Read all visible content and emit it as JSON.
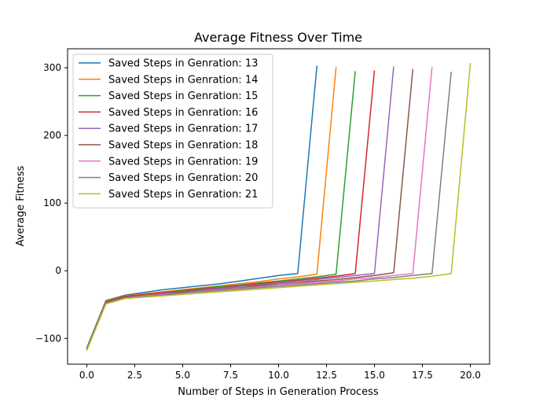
{
  "chart_data": {
    "type": "line",
    "title": "Average Fitness Over Time",
    "xlabel": "Number of Steps in Generation Process",
    "ylabel": "Average Fitness",
    "xlim": [
      -1.0,
      21.0
    ],
    "ylim": [
      -138,
      328
    ],
    "x_ticks": [
      0.0,
      2.5,
      5.0,
      7.5,
      10.0,
      12.5,
      15.0,
      17.5,
      20.0
    ],
    "x_tick_labels": [
      "0.0",
      "2.5",
      "5.0",
      "7.5",
      "10.0",
      "12.5",
      "15.0",
      "17.5",
      "20.0"
    ],
    "y_ticks": [
      -100,
      0,
      100,
      200,
      300
    ],
    "y_tick_labels": [
      "−100",
      "0",
      "100",
      "200",
      "300"
    ],
    "grid": false,
    "legend_position": "top-left",
    "series": [
      {
        "name": "Saved Steps in Genration: 13",
        "color": "#1f77b4",
        "x": [
          0,
          1,
          2,
          3,
          4,
          5,
          6,
          7,
          8,
          9,
          10,
          11,
          12
        ],
        "y": [
          -114,
          -44,
          -36,
          -32,
          -28,
          -25,
          -22,
          -19,
          -15,
          -11,
          -7,
          -4,
          303
        ]
      },
      {
        "name": "Saved Steps in Genration: 14",
        "color": "#ff7f0e",
        "x": [
          0,
          1,
          2,
          3,
          4,
          5,
          6,
          7,
          8,
          9,
          10,
          11,
          12,
          13
        ],
        "y": [
          -115,
          -45,
          -37,
          -34,
          -31,
          -28,
          -25,
          -22,
          -19,
          -16,
          -12,
          -9,
          -5,
          301
        ]
      },
      {
        "name": "Saved Steps in Genration: 15",
        "color": "#2ca02c",
        "x": [
          0,
          1,
          2,
          3,
          4,
          5,
          6,
          7,
          8,
          9,
          10,
          11,
          12,
          13,
          14
        ],
        "y": [
          -115,
          -46,
          -38,
          -35,
          -32,
          -29,
          -26,
          -23,
          -21,
          -18,
          -15,
          -12,
          -9,
          -5,
          295
        ]
      },
      {
        "name": "Saved Steps in Genration: 16",
        "color": "#d62728",
        "x": [
          0,
          1,
          2,
          3,
          4,
          5,
          6,
          7,
          8,
          9,
          10,
          11,
          12,
          13,
          14,
          15
        ],
        "y": [
          -116,
          -46,
          -38,
          -35,
          -32,
          -30,
          -27,
          -25,
          -22,
          -19,
          -17,
          -14,
          -11,
          -8,
          -4,
          296
        ]
      },
      {
        "name": "Saved Steps in Genration: 17",
        "color": "#9467bd",
        "x": [
          0,
          1,
          2,
          3,
          4,
          5,
          6,
          7,
          8,
          9,
          10,
          11,
          12,
          13,
          14,
          15,
          16
        ],
        "y": [
          -116,
          -47,
          -39,
          -36,
          -33,
          -31,
          -28,
          -26,
          -23,
          -21,
          -18,
          -16,
          -13,
          -10,
          -7,
          -4,
          302
        ]
      },
      {
        "name": "Saved Steps in Genration: 18",
        "color": "#8c564b",
        "x": [
          0,
          1,
          2,
          3,
          4,
          5,
          6,
          7,
          8,
          9,
          10,
          11,
          12,
          13,
          14,
          15,
          16,
          17
        ],
        "y": [
          -116,
          -47,
          -39,
          -36,
          -34,
          -32,
          -29,
          -27,
          -25,
          -22,
          -20,
          -18,
          -15,
          -13,
          -10,
          -7,
          -3,
          298
        ]
      },
      {
        "name": "Saved Steps in Genration: 19",
        "color": "#e377c2",
        "x": [
          0,
          1,
          2,
          3,
          4,
          5,
          6,
          7,
          8,
          9,
          10,
          11,
          12,
          13,
          14,
          15,
          16,
          17,
          18
        ],
        "y": [
          -117,
          -48,
          -40,
          -37,
          -35,
          -33,
          -30,
          -28,
          -26,
          -24,
          -21,
          -19,
          -17,
          -15,
          -12,
          -10,
          -7,
          -4,
          301
        ]
      },
      {
        "name": "Saved Steps in Genration: 20",
        "color": "#7f7f7f",
        "x": [
          0,
          1,
          2,
          3,
          4,
          5,
          6,
          7,
          8,
          9,
          10,
          11,
          12,
          13,
          14,
          15,
          16,
          17,
          18,
          19
        ],
        "y": [
          -117,
          -48,
          -40,
          -38,
          -36,
          -33,
          -31,
          -29,
          -27,
          -25,
          -23,
          -21,
          -19,
          -17,
          -15,
          -12,
          -10,
          -7,
          -4,
          294
        ]
      },
      {
        "name": "Saved Steps in Genration: 21",
        "color": "#bcbd22",
        "x": [
          0,
          1,
          2,
          3,
          4,
          5,
          6,
          7,
          8,
          9,
          10,
          11,
          12,
          13,
          14,
          15,
          16,
          17,
          18,
          19,
          20
        ],
        "y": [
          -118,
          -49,
          -41,
          -39,
          -37,
          -35,
          -33,
          -31,
          -29,
          -27,
          -25,
          -23,
          -21,
          -19,
          -17,
          -15,
          -13,
          -11,
          -8,
          -4,
          307
        ]
      }
    ]
  }
}
